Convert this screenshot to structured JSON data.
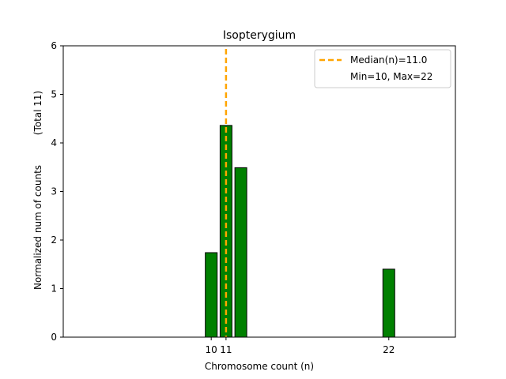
{
  "chart_data": {
    "type": "bar",
    "title": "Isopterygium",
    "xlabel": "Chromosome count (n)",
    "ylabel": "Normalized num of counts",
    "ylabel_note": "(Total 11)",
    "xlim": [
      0,
      26.5
    ],
    "ylim": [
      0,
      6
    ],
    "x_ticks": [
      10,
      11,
      22
    ],
    "y_ticks": [
      0,
      1,
      2,
      3,
      4,
      5,
      6
    ],
    "bar_width": 0.8,
    "bar_color": "#008000",
    "bar_edge": "#000000",
    "bars": [
      {
        "x": 10,
        "value": 1.74
      },
      {
        "x": 11,
        "value": 4.36
      },
      {
        "x": 12,
        "value": 3.49
      },
      {
        "x": 22,
        "value": 1.4
      }
    ],
    "median_line": {
      "x": 11.0,
      "color": "#ffa500"
    },
    "legend": {
      "location": "top-right",
      "entries": [
        "Median(n)=11.0",
        "Min=10, Max=22"
      ]
    }
  }
}
